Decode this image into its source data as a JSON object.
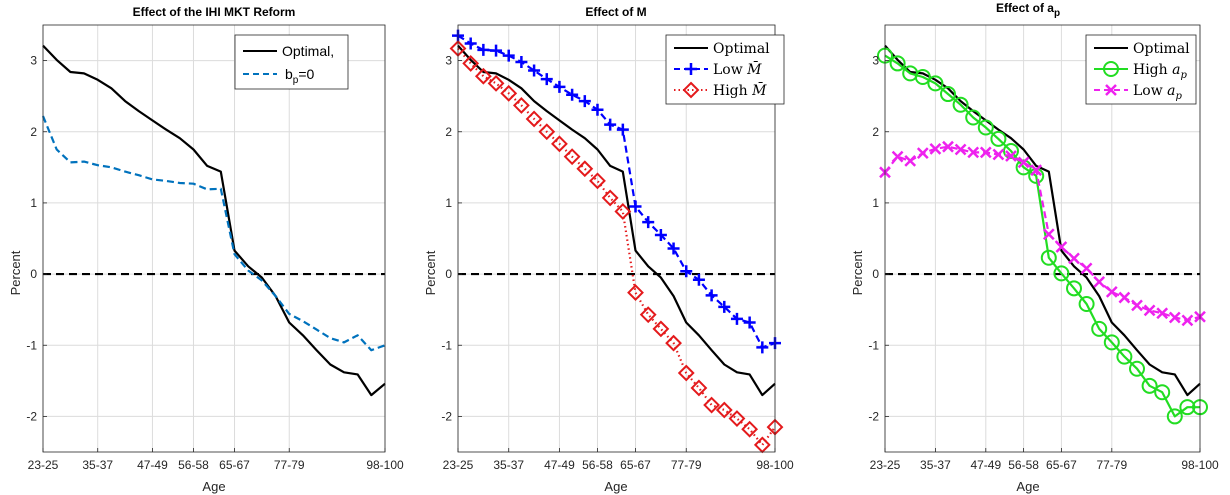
{
  "chart_data": [
    {
      "type": "line",
      "title": "Effect of the IHI MKT Reform",
      "xlabel": "Age",
      "ylabel": "Percent",
      "xtick_labels": [
        "23-25",
        "35-37",
        "47-49",
        "56-58",
        "65-67",
        "77-79",
        "98-100"
      ],
      "xlim": [
        1,
        26
      ],
      "ylim": [
        -2.5,
        3.5
      ],
      "y_ticks": [
        -2,
        -1,
        0,
        1,
        2,
        3
      ],
      "grid": true,
      "legend_position": "top-right",
      "reference_line": {
        "y": 0,
        "style": "dashed",
        "color": "#000000"
      },
      "series": [
        {
          "name": "Optimal,",
          "color": "#000000",
          "line_style": "solid",
          "marker": "none",
          "x": [
            1,
            2,
            3,
            4,
            5,
            6,
            7,
            8,
            9,
            10,
            11,
            12,
            13,
            14,
            15,
            16,
            17,
            18,
            19,
            20,
            21,
            22,
            23,
            24,
            25,
            26
          ],
          "y": [
            3.21,
            3.01,
            2.84,
            2.82,
            2.73,
            2.61,
            2.43,
            2.29,
            2.16,
            2.03,
            1.91,
            1.75,
            1.52,
            1.44,
            0.33,
            0.11,
            -0.05,
            -0.31,
            -0.68,
            -0.86,
            -1.07,
            -1.27,
            -1.38,
            -1.41,
            -1.7,
            -1.54
          ]
        },
        {
          "name": "b_p=0",
          "color": "#0072bd",
          "line_style": "dashed",
          "marker": "none",
          "x": [
            1,
            2,
            3,
            4,
            5,
            6,
            7,
            8,
            9,
            10,
            11,
            12,
            13,
            14,
            15,
            16,
            17,
            18,
            19,
            20,
            21,
            22,
            23,
            24,
            25,
            26
          ],
          "y": [
            2.22,
            1.75,
            1.57,
            1.58,
            1.53,
            1.5,
            1.44,
            1.39,
            1.33,
            1.31,
            1.28,
            1.27,
            1.19,
            1.2,
            0.28,
            0.05,
            -0.09,
            -0.31,
            -0.56,
            -0.66,
            -0.78,
            -0.9,
            -0.96,
            -0.86,
            -1.07,
            -1.0
          ]
        }
      ]
    },
    {
      "type": "line",
      "title": "Effect of M",
      "xlabel": "Age",
      "ylabel": "Percent",
      "xtick_labels": [
        "23-25",
        "35-37",
        "47-49",
        "56-58",
        "65-67",
        "77-79",
        "98-100"
      ],
      "xlim": [
        1,
        26
      ],
      "ylim": [
        -2.5,
        3.5
      ],
      "y_ticks": [
        -2,
        -1,
        0,
        1,
        2,
        3
      ],
      "grid": true,
      "legend_position": "top-right",
      "reference_line": {
        "y": 0,
        "style": "dashed",
        "color": "#000000"
      },
      "series": [
        {
          "name": "Optimal",
          "color": "#000000",
          "line_style": "solid",
          "marker": "none",
          "x": [
            1,
            2,
            3,
            4,
            5,
            6,
            7,
            8,
            9,
            10,
            11,
            12,
            13,
            14,
            15,
            16,
            17,
            18,
            19,
            20,
            21,
            22,
            23,
            24,
            25,
            26
          ],
          "y": [
            3.21,
            3.01,
            2.84,
            2.82,
            2.73,
            2.61,
            2.43,
            2.29,
            2.16,
            2.03,
            1.91,
            1.75,
            1.52,
            1.44,
            0.33,
            0.11,
            -0.05,
            -0.31,
            -0.68,
            -0.86,
            -1.07,
            -1.27,
            -1.38,
            -1.41,
            -1.7,
            -1.54
          ]
        },
        {
          "name": "Low M̄",
          "color": "#0000ff",
          "line_style": "dashed",
          "marker": "plus",
          "x": [
            1,
            2,
            3,
            4,
            5,
            6,
            7,
            8,
            9,
            10,
            11,
            12,
            13,
            14,
            15,
            16,
            17,
            18,
            19,
            20,
            21,
            22,
            23,
            24,
            25,
            26
          ],
          "y": [
            3.35,
            3.24,
            3.15,
            3.14,
            3.07,
            2.98,
            2.86,
            2.74,
            2.63,
            2.52,
            2.43,
            2.31,
            2.1,
            2.03,
            0.95,
            0.73,
            0.55,
            0.36,
            0.04,
            -0.08,
            -0.3,
            -0.46,
            -0.63,
            -0.68,
            -1.03,
            -0.97
          ]
        },
        {
          "name": "High M̄",
          "color": "#e41a1c",
          "line_style": "dotted",
          "marker": "diamond",
          "x": [
            1,
            2,
            3,
            4,
            5,
            6,
            7,
            8,
            9,
            10,
            11,
            12,
            13,
            14,
            15,
            16,
            17,
            18,
            19,
            20,
            21,
            22,
            23,
            24,
            25,
            26
          ],
          "y": [
            3.17,
            2.96,
            2.78,
            2.68,
            2.54,
            2.37,
            2.18,
            2.0,
            1.83,
            1.65,
            1.48,
            1.31,
            1.07,
            0.88,
            -0.26,
            -0.57,
            -0.77,
            -0.97,
            -1.39,
            -1.6,
            -1.84,
            -1.91,
            -2.03,
            -2.18,
            -2.4,
            -2.15
          ]
        }
      ]
    },
    {
      "type": "line",
      "title": "Effect of a_p",
      "xlabel": "Age",
      "ylabel": "Percent",
      "xtick_labels": [
        "23-25",
        "35-37",
        "47-49",
        "56-58",
        "65-67",
        "77-79",
        "98-100"
      ],
      "xlim": [
        1,
        26
      ],
      "ylim": [
        -2.5,
        3.5
      ],
      "y_ticks": [
        -2,
        -1,
        0,
        1,
        2,
        3
      ],
      "grid": true,
      "legend_position": "top-right",
      "reference_line": {
        "y": 0,
        "style": "dashed",
        "color": "#000000"
      },
      "series": [
        {
          "name": "Optimal",
          "color": "#000000",
          "line_style": "solid",
          "marker": "none",
          "x": [
            1,
            2,
            3,
            4,
            5,
            6,
            7,
            8,
            9,
            10,
            11,
            12,
            13,
            14,
            15,
            16,
            17,
            18,
            19,
            20,
            21,
            22,
            23,
            24,
            25,
            26
          ],
          "y": [
            3.21,
            3.01,
            2.84,
            2.82,
            2.73,
            2.61,
            2.43,
            2.29,
            2.16,
            2.03,
            1.91,
            1.75,
            1.52,
            1.44,
            0.33,
            0.11,
            -0.05,
            -0.31,
            -0.68,
            -0.86,
            -1.07,
            -1.27,
            -1.38,
            -1.41,
            -1.7,
            -1.54
          ]
        },
        {
          "name": "High a_p",
          "color": "#22dd22",
          "line_style": "solid",
          "marker": "circle",
          "x": [
            1,
            2,
            3,
            4,
            5,
            6,
            7,
            8,
            9,
            10,
            11,
            12,
            13,
            14,
            15,
            16,
            17,
            18,
            19,
            20,
            21,
            22,
            23,
            24,
            25,
            26
          ],
          "y": [
            3.07,
            2.96,
            2.82,
            2.77,
            2.68,
            2.53,
            2.38,
            2.2,
            2.06,
            1.9,
            1.73,
            1.5,
            1.38,
            0.23,
            0.01,
            -0.2,
            -0.42,
            -0.77,
            -0.96,
            -1.16,
            -1.33,
            -1.57,
            -1.66,
            -2.0,
            -1.87,
            -1.87
          ]
        },
        {
          "name": "Low a_p",
          "color": "#ee22ee",
          "line_style": "dashed",
          "marker": "x",
          "x": [
            1,
            2,
            3,
            4,
            5,
            6,
            7,
            8,
            9,
            10,
            11,
            12,
            13,
            14,
            15,
            16,
            17,
            18,
            19,
            20,
            21,
            22,
            23,
            24,
            25,
            26
          ],
          "y": [
            1.43,
            1.65,
            1.59,
            1.7,
            1.76,
            1.79,
            1.75,
            1.71,
            1.71,
            1.68,
            1.66,
            1.57,
            1.46,
            0.56,
            0.38,
            0.22,
            0.08,
            -0.11,
            -0.25,
            -0.33,
            -0.44,
            -0.51,
            -0.55,
            -0.61,
            -0.65,
            -0.6
          ]
        }
      ]
    }
  ]
}
